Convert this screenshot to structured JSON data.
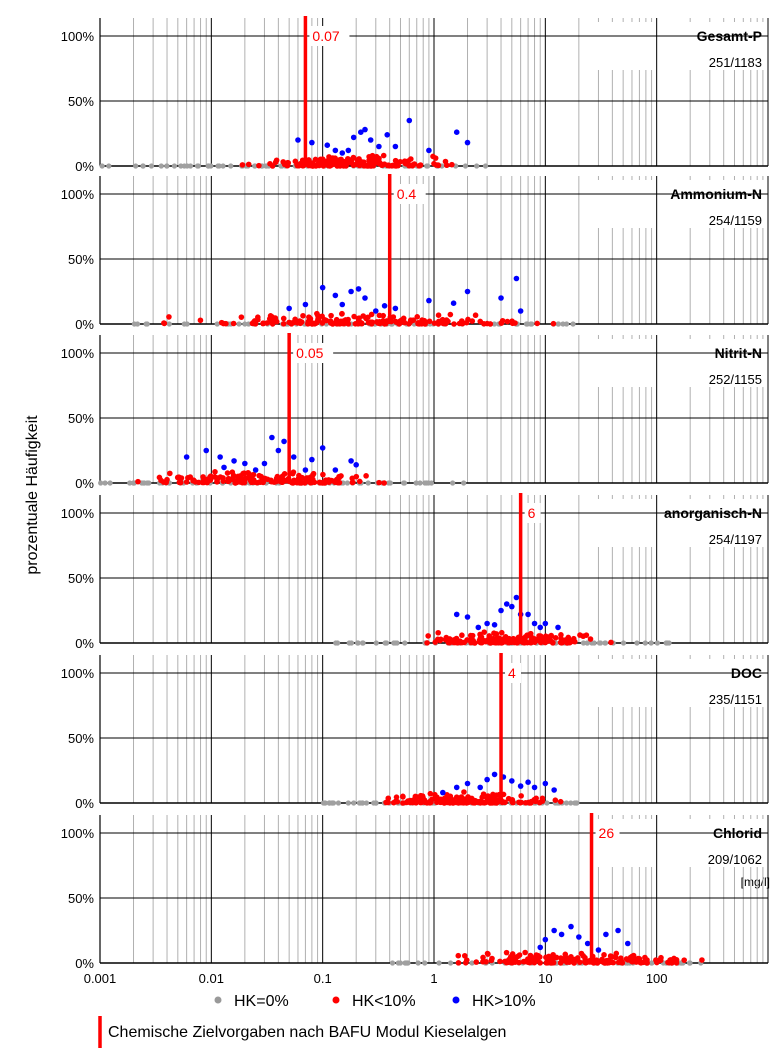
{
  "chart_data": {
    "type": "scatter",
    "ylabel": "prozentuale Häufigkeit",
    "xunit": "[mg/l]",
    "x_scale": "log",
    "xlim": [
      0.001,
      1000
    ],
    "ylim": [
      0,
      100
    ],
    "x_ticks": [
      "0.001",
      "0.01",
      "0.1",
      "1",
      "10",
      "100"
    ],
    "y_ticks": [
      "0%",
      "50%",
      "100%"
    ],
    "grid": true,
    "legend": {
      "placement": "bottom",
      "items": [
        {
          "label": "HK=0%",
          "color": "#999999"
        },
        {
          "label": "HK<10%",
          "color": "#ff0000"
        },
        {
          "label": "HK>10%",
          "color": "#0000ff"
        }
      ],
      "target_label": "Chemische Zielvorgaben nach BAFU Modul Kieselalgen",
      "target_color": "#ff0000"
    },
    "panels": [
      {
        "name": "Gesamt-P",
        "counts": "251/1183",
        "target": 0.07,
        "target_label": "0.07",
        "gray_range": [
          0.001,
          3
        ],
        "red_range": [
          0.01,
          2.5
        ],
        "blue_points": [
          [
            0.06,
            20
          ],
          [
            0.08,
            18
          ],
          [
            0.11,
            16
          ],
          [
            0.13,
            12
          ],
          [
            0.15,
            10
          ],
          [
            0.17,
            12
          ],
          [
            0.19,
            22
          ],
          [
            0.22,
            26
          ],
          [
            0.24,
            28
          ],
          [
            0.27,
            20
          ],
          [
            0.32,
            15
          ],
          [
            0.38,
            24
          ],
          [
            0.45,
            15
          ],
          [
            0.6,
            35
          ],
          [
            0.9,
            12
          ],
          [
            1.6,
            26
          ],
          [
            2,
            18
          ]
        ]
      },
      {
        "name": "Ammonium-N",
        "counts": "254/1159",
        "target": 0.4,
        "target_label": "0.4",
        "gray_range": [
          0.002,
          30
        ],
        "red_range": [
          0.002,
          25
        ],
        "blue_points": [
          [
            0.05,
            12
          ],
          [
            0.07,
            15
          ],
          [
            0.1,
            28
          ],
          [
            0.13,
            22
          ],
          [
            0.15,
            15
          ],
          [
            0.18,
            25
          ],
          [
            0.21,
            27
          ],
          [
            0.24,
            20
          ],
          [
            0.3,
            10
          ],
          [
            0.36,
            14
          ],
          [
            0.45,
            12
          ],
          [
            0.9,
            18
          ],
          [
            1.5,
            16
          ],
          [
            2,
            25
          ],
          [
            4,
            20
          ],
          [
            5.5,
            35
          ],
          [
            6,
            10
          ]
        ]
      },
      {
        "name": "Nitrit-N",
        "counts": "252/1155",
        "target": 0.05,
        "target_label": "0.05",
        "gray_range": [
          0.001,
          2
        ],
        "red_range": [
          0.001,
          0.6
        ],
        "blue_points": [
          [
            0.006,
            20
          ],
          [
            0.009,
            25
          ],
          [
            0.012,
            20
          ],
          [
            0.013,
            12
          ],
          [
            0.016,
            17
          ],
          [
            0.02,
            15
          ],
          [
            0.025,
            10
          ],
          [
            0.03,
            15
          ],
          [
            0.035,
            35
          ],
          [
            0.04,
            25
          ],
          [
            0.045,
            32
          ],
          [
            0.055,
            20
          ],
          [
            0.07,
            10
          ],
          [
            0.08,
            18
          ],
          [
            0.1,
            27
          ],
          [
            0.13,
            10
          ],
          [
            0.18,
            17
          ],
          [
            0.2,
            14
          ]
        ]
      },
      {
        "name": "anorganisch-N",
        "counts": "254/1197",
        "target": 6,
        "target_label": "6",
        "gray_range": [
          0.12,
          150
        ],
        "red_range": [
          0.4,
          60
        ],
        "blue_points": [
          [
            1.6,
            22
          ],
          [
            2,
            20
          ],
          [
            2.5,
            12
          ],
          [
            3,
            15
          ],
          [
            3.5,
            14
          ],
          [
            4,
            25
          ],
          [
            4.5,
            30
          ],
          [
            5,
            28
          ],
          [
            5.5,
            35
          ],
          [
            6,
            22
          ],
          [
            7,
            22
          ],
          [
            8,
            15
          ],
          [
            9,
            12
          ],
          [
            10,
            15
          ],
          [
            13,
            12
          ]
        ]
      },
      {
        "name": "DOC",
        "counts": "235/1151",
        "target": 4,
        "target_label": "4",
        "gray_range": [
          0.1,
          20
        ],
        "red_range": [
          0.2,
          18
        ],
        "blue_points": [
          [
            1.2,
            8
          ],
          [
            1.6,
            12
          ],
          [
            2,
            15
          ],
          [
            2.6,
            12
          ],
          [
            3,
            18
          ],
          [
            3.5,
            22
          ],
          [
            4.2,
            20
          ],
          [
            5,
            17
          ],
          [
            6,
            13
          ],
          [
            7,
            16
          ],
          [
            8,
            12
          ],
          [
            10,
            15
          ],
          [
            12,
            10
          ]
        ]
      },
      {
        "name": "Chlorid",
        "counts": "209/1062",
        "target": 26,
        "target_label": "26",
        "gray_range": [
          0.4,
          250
        ],
        "red_range": [
          0.8,
          500
        ],
        "blue_points": [
          [
            9,
            12
          ],
          [
            10,
            18
          ],
          [
            12,
            25
          ],
          [
            14,
            22
          ],
          [
            17,
            28
          ],
          [
            20,
            20
          ],
          [
            24,
            15
          ],
          [
            30,
            10
          ],
          [
            35,
            22
          ],
          [
            45,
            25
          ],
          [
            55,
            15
          ]
        ]
      }
    ]
  }
}
